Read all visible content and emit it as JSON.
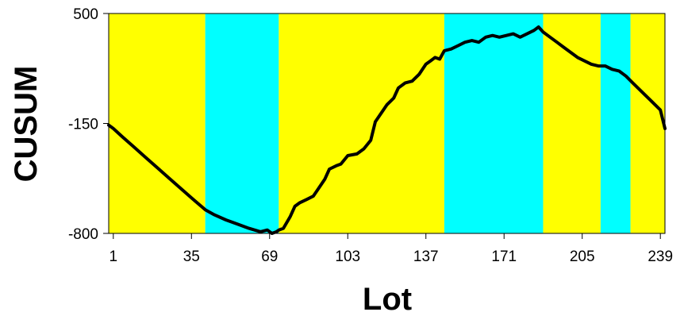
{
  "chart_data": {
    "type": "line",
    "title": "",
    "xlabel": "Lot",
    "ylabel": "CUSUM",
    "xlim": [
      -1,
      241
    ],
    "ylim": [
      -800,
      500
    ],
    "x_ticks": [
      1,
      35,
      69,
      103,
      137,
      171,
      205,
      239
    ],
    "y_ticks": [
      -800,
      -150,
      500
    ],
    "x_tick_labels": [
      "1",
      "35",
      "69",
      "103",
      "137",
      "171",
      "205",
      "239"
    ],
    "y_tick_labels": [
      "-800",
      "-150",
      "500"
    ],
    "grid": false,
    "legend": "none",
    "colors": {
      "band_a": "#FFFF00",
      "band_b": "#00FFFF",
      "line": "#000000"
    },
    "bands": [
      {
        "x_start": -1,
        "x_end": 41,
        "color": "band_a"
      },
      {
        "x_start": 41,
        "x_end": 73,
        "color": "band_b"
      },
      {
        "x_start": 73,
        "x_end": 145,
        "color": "band_a"
      },
      {
        "x_start": 145,
        "x_end": 188,
        "color": "band_b"
      },
      {
        "x_start": 188,
        "x_end": 213,
        "color": "band_a"
      },
      {
        "x_start": 213,
        "x_end": 226,
        "color": "band_b"
      },
      {
        "x_start": 226,
        "x_end": 241,
        "color": "band_a"
      }
    ],
    "series": [
      {
        "name": "",
        "x": [
          -1,
          1,
          5,
          10,
          15,
          20,
          25,
          30,
          35,
          41,
          45,
          50,
          55,
          60,
          65,
          68,
          70,
          72,
          73,
          75,
          78,
          80,
          82,
          85,
          88,
          90,
          93,
          95,
          98,
          100,
          103,
          107,
          110,
          113,
          115,
          118,
          120,
          123,
          125,
          128,
          131,
          134,
          137,
          139,
          141,
          143,
          145,
          148,
          151,
          154,
          157,
          160,
          163,
          166,
          169,
          172,
          175,
          178,
          181,
          184,
          186,
          188,
          191,
          194,
          197,
          200,
          203,
          206,
          209,
          212,
          215,
          218,
          221,
          224,
          227,
          230,
          233,
          236,
          239,
          241
        ],
        "y": [
          -160,
          -180,
          -230,
          -290,
          -350,
          -410,
          -470,
          -530,
          -590,
          -660,
          -690,
          -720,
          -745,
          -770,
          -790,
          -780,
          -800,
          -790,
          -780,
          -770,
          -700,
          -640,
          -620,
          -600,
          -580,
          -540,
          -480,
          -420,
          -400,
          -390,
          -340,
          -330,
          -300,
          -250,
          -140,
          -80,
          -40,
          0,
          60,
          90,
          100,
          140,
          200,
          220,
          240,
          230,
          280,
          290,
          310,
          330,
          340,
          330,
          360,
          370,
          360,
          370,
          380,
          360,
          380,
          400,
          420,
          390,
          360,
          330,
          300,
          270,
          240,
          220,
          200,
          190,
          190,
          170,
          160,
          130,
          90,
          50,
          10,
          -30,
          -70,
          -180
        ]
      }
    ]
  }
}
